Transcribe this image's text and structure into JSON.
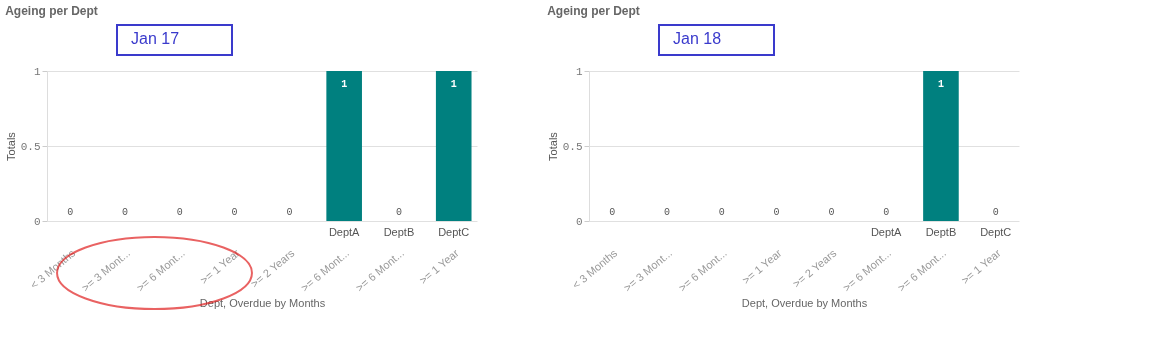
{
  "chart_data": [
    {
      "type": "bar",
      "title": "Ageing per Dept",
      "categories": [
        "< 3 Months",
        ">= 3 Mont...",
        ">= 6 Mont...",
        ">= 1 Year",
        ">= 2 Years",
        ">= 6 Mont...",
        ">= 6 Mont...",
        ">= 1 Year"
      ],
      "values": [
        0,
        0,
        0,
        0,
        0,
        1,
        0,
        1
      ],
      "color": "#00807f",
      "ylim": [
        0,
        1
      ],
      "yticks": [
        0,
        0.5,
        1
      ],
      "grid": "y",
      "data_labels": true,
      "xlabel": "Dept,  Overdue by Months",
      "ylabel": "Totals",
      "annotations": [
        "Jan 17",
        "DeptA",
        "DeptB",
        "DeptC"
      ]
    },
    {
      "type": "bar",
      "title": "Ageing per Dept",
      "categories": [
        "< 3 Months",
        ">= 3 Mont...",
        ">= 6 Mont...",
        ">= 1 Year",
        ">= 2 Years",
        ">= 6 Mont...",
        ">= 6 Mont...",
        ">= 1 Year"
      ],
      "values": [
        0,
        0,
        0,
        0,
        0,
        0,
        1,
        0
      ],
      "color": "#00807f",
      "ylim": [
        0,
        1
      ],
      "yticks": [
        0,
        0.5,
        1
      ],
      "grid": "y",
      "data_labels": true,
      "xlabel": "Dept,  Overdue by Months",
      "ylabel": "Totals",
      "annotations": [
        "Jan 18",
        "DeptA",
        "DeptB",
        "DeptC"
      ]
    }
  ]
}
